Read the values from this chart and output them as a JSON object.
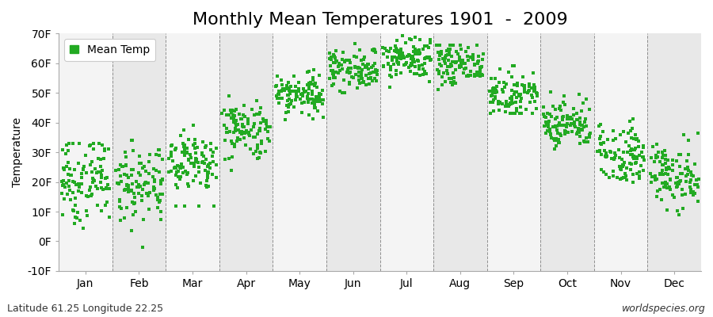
{
  "title": "Monthly Mean Temperatures 1901  -  2009",
  "ylabel": "Temperature",
  "xlabel": "",
  "months": [
    "Jan",
    "Feb",
    "Mar",
    "Apr",
    "May",
    "Jun",
    "Jul",
    "Aug",
    "Sep",
    "Oct",
    "Nov",
    "Dec"
  ],
  "month_positions": [
    1,
    2,
    3,
    4,
    5,
    6,
    7,
    8,
    9,
    10,
    11,
    12
  ],
  "ylim": [
    -10,
    70
  ],
  "yticks": [
    -10,
    0,
    10,
    20,
    30,
    40,
    50,
    60,
    70
  ],
  "ytick_labels": [
    "-10F",
    "0F",
    "10F",
    "20F",
    "30F",
    "40F",
    "50F",
    "60F",
    "70F"
  ],
  "dot_color": "#22aa22",
  "dot_size": 6,
  "background_color": "#ffffff",
  "band_color_odd": "#e8e8e8",
  "band_color_even": "#f4f4f4",
  "grid_color": "#777777",
  "legend_label": "Mean Temp",
  "footer_left": "Latitude 61.25 Longitude 22.25",
  "footer_right": "worldspecies.org",
  "monthly_means": [
    20.5,
    19.5,
    27.0,
    37.5,
    49.5,
    58.0,
    61.5,
    59.5,
    49.5,
    39.5,
    29.5,
    22.0
  ],
  "monthly_stds": [
    7,
    7,
    5.5,
    5,
    4,
    3.5,
    3.5,
    3.5,
    3.5,
    4,
    5,
    5.5
  ],
  "monthly_mins": [
    -3,
    -2,
    12,
    24,
    39,
    49,
    52,
    51,
    43,
    31,
    19,
    9
  ],
  "monthly_maxs": [
    33,
    34,
    44,
    50,
    60,
    67,
    70,
    66,
    59,
    53,
    45,
    37
  ],
  "n_years": 109,
  "title_fontsize": 16,
  "axis_fontsize": 10,
  "tick_fontsize": 10,
  "footer_fontsize": 9
}
